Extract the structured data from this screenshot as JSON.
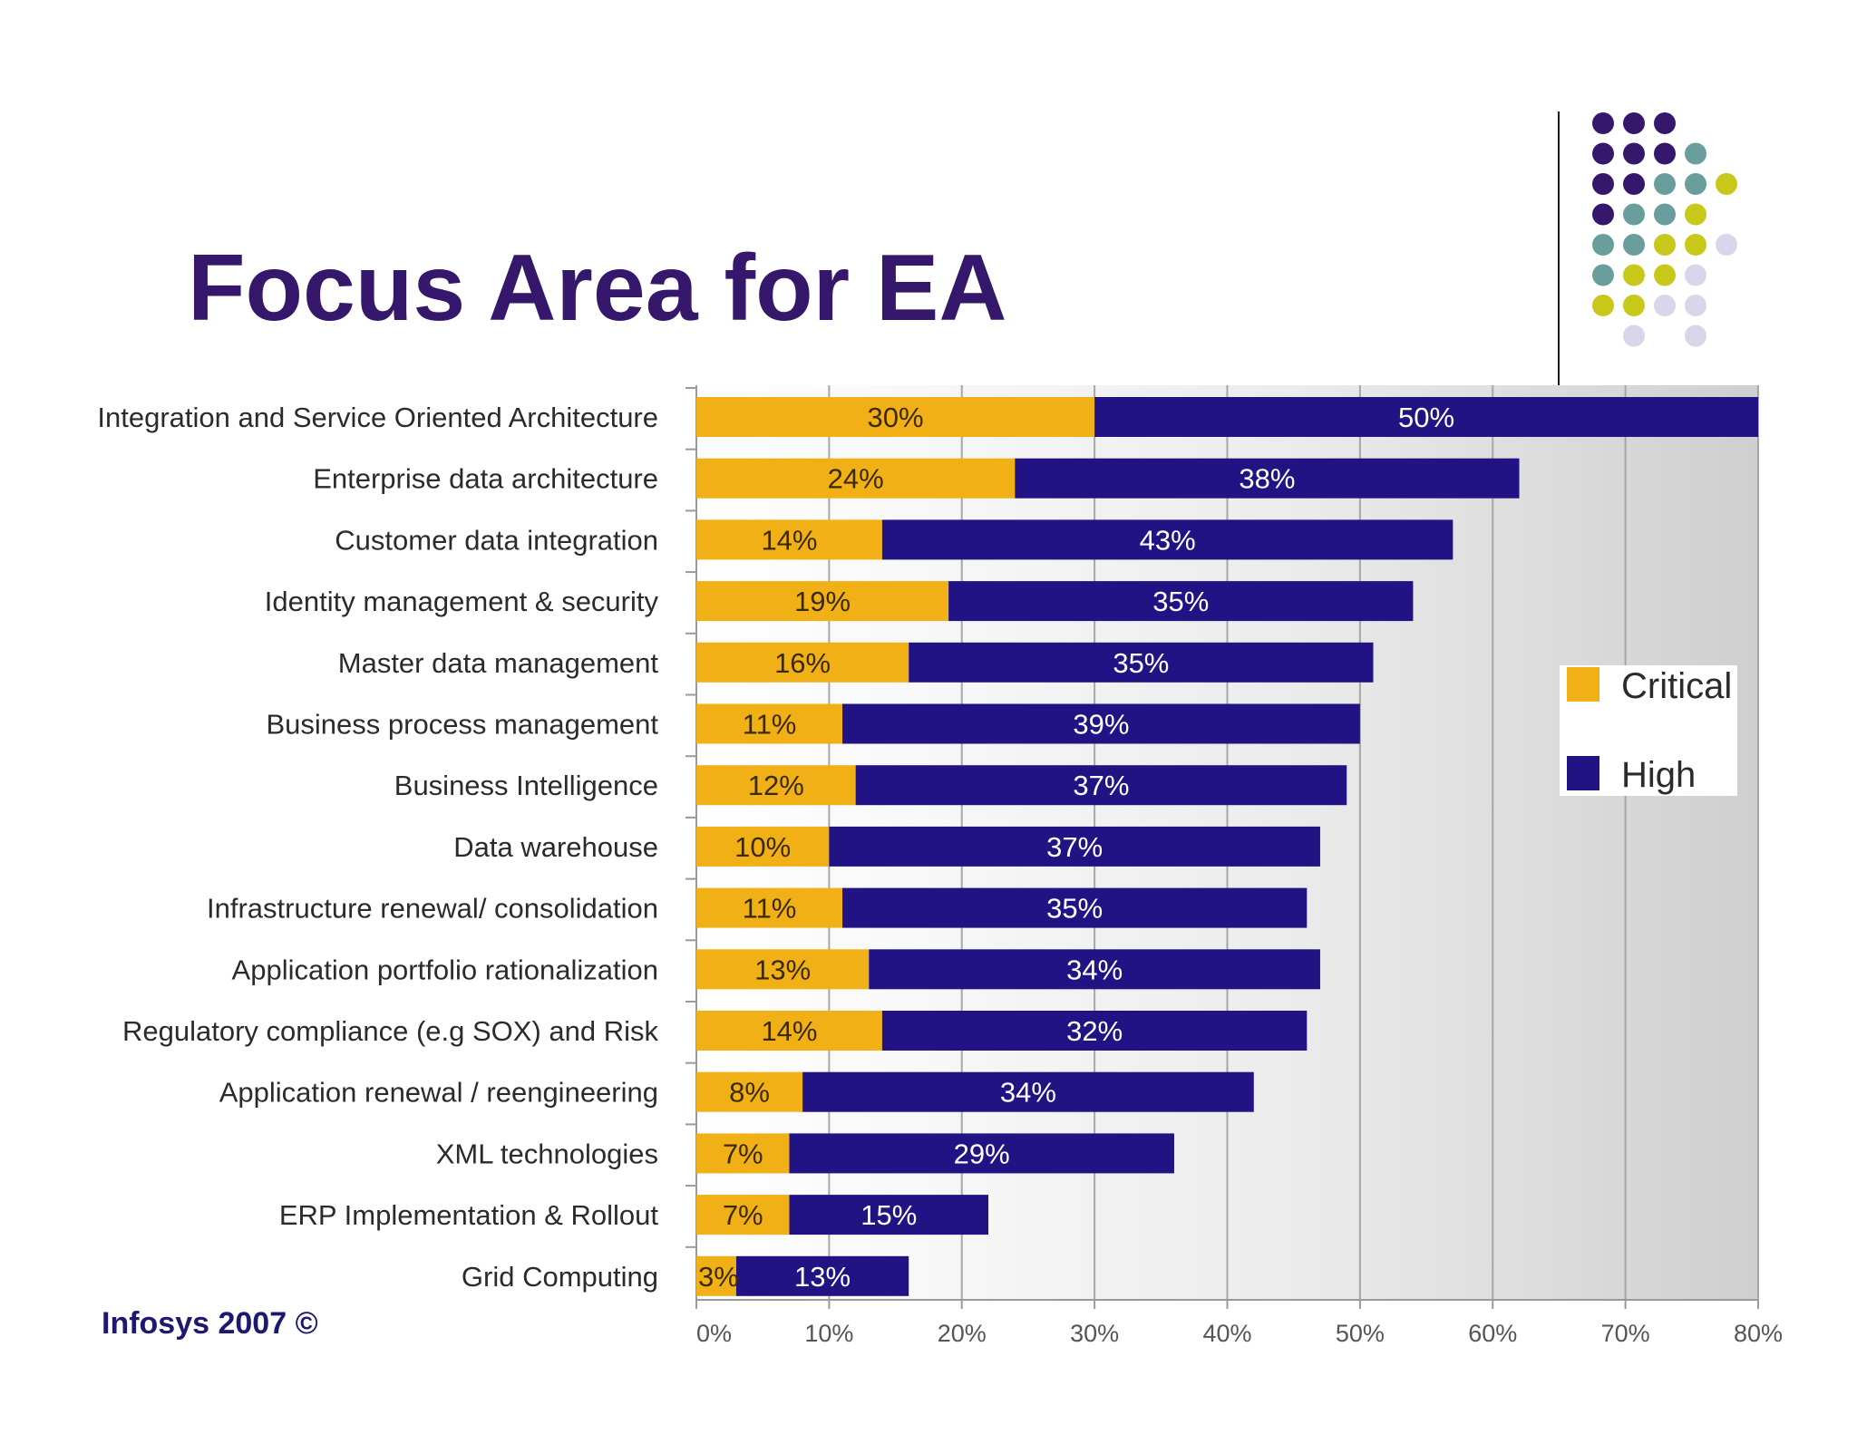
{
  "slide": {
    "title": "Focus Area for EA",
    "footer": "Infosys 2007 ©"
  },
  "colors": {
    "title": "#35176b",
    "critical": "#f1b016",
    "high": "#221385",
    "dot_purple": "#35176b",
    "dot_teal": "#6a9e9c",
    "dot_lime": "#c8c81a",
    "dot_lavender": "#d8d6ea"
  },
  "decoration": {
    "dot_rows": [
      [
        "purple",
        "purple",
        "purple"
      ],
      [
        "purple",
        "purple",
        "purple",
        "teal"
      ],
      [
        "purple",
        "purple",
        "teal",
        "teal",
        "lime"
      ],
      [
        "purple",
        "teal",
        "teal",
        "lime"
      ],
      [
        "teal",
        "teal",
        "lime",
        "lime",
        "lavender"
      ],
      [
        "teal",
        "lime",
        "lime",
        "lavender"
      ],
      [
        "lime",
        "lime",
        "lavender",
        "lavender"
      ],
      [
        "lavender",
        "lavender"
      ]
    ]
  },
  "chart_data": {
    "type": "bar",
    "orientation": "horizontal",
    "stacked": true,
    "title": "",
    "xlabel": "",
    "ylabel": "",
    "categories": [
      "Integration and Service Oriented Architecture",
      "Enterprise data architecture",
      "Customer data integration",
      "Identity management & security",
      "Master data management",
      "Business process management",
      "Business Intelligence",
      "Data warehouse",
      "Infrastructure renewal/ consolidation",
      "Application portfolio rationalization",
      "Regulatory compliance (e.g SOX) and Risk",
      "Application renewal / reengineering",
      "XML technologies",
      "ERP Implementation & Rollout",
      "Grid Computing"
    ],
    "series": [
      {
        "name": "Critical",
        "values": [
          30,
          24,
          14,
          19,
          16,
          11,
          12,
          10,
          11,
          13,
          14,
          8,
          7,
          7,
          3
        ],
        "labels": [
          "30%",
          "24%",
          "14%",
          "19%",
          "16%",
          "11%",
          "12%",
          "10%",
          "11%",
          "13%",
          "14%",
          "8%",
          "7%",
          "7%",
          "3%"
        ]
      },
      {
        "name": "High",
        "values": [
          50,
          38,
          43,
          35,
          35,
          39,
          37,
          37,
          35,
          34,
          32,
          34,
          29,
          15,
          13
        ],
        "labels": [
          "50%",
          "38%",
          "43%",
          "35%",
          "35%",
          "39%",
          "37%",
          "37%",
          "35%",
          "34%",
          "32%",
          "34%",
          "29%",
          "15%",
          "13%"
        ]
      }
    ],
    "xlim": [
      0,
      80
    ],
    "xticks": [
      0,
      10,
      20,
      30,
      40,
      50,
      60,
      70,
      80
    ],
    "xtick_labels": [
      "0%",
      "10%",
      "20%",
      "30%",
      "40%",
      "50%",
      "60%",
      "70%",
      "80%"
    ],
    "grid": true,
    "legend": {
      "position": "right",
      "entries": [
        "Critical",
        "High"
      ]
    }
  }
}
